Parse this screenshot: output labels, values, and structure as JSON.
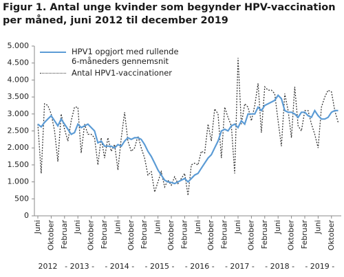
{
  "chart_data": {
    "type": "line",
    "title": "Figur 1. Antal unge kvinder som begynder HPV-vaccination per måned, juni 2012 til december 2019",
    "categories": [
      "Juni",
      null,
      null,
      null,
      "Oktober",
      null,
      null,
      null,
      "Februar",
      null,
      null,
      null,
      "Juni",
      null,
      null,
      null,
      "Oktober",
      null,
      null,
      null,
      "Februar",
      null,
      null,
      null,
      "Juni",
      null,
      null,
      null,
      "Oktober",
      null,
      null,
      null,
      "Februar",
      null,
      null,
      null,
      "Juni",
      null,
      null,
      null,
      "Oktober",
      null,
      null,
      null,
      "Februar",
      null,
      null,
      null,
      "Juni",
      null,
      null,
      null,
      "Oktober",
      null,
      null,
      null,
      "Februar",
      null,
      null,
      null,
      "Juni",
      null,
      null,
      null,
      "Oktober",
      null,
      null,
      null,
      "Februar",
      null,
      null,
      null,
      "Juni",
      null,
      null,
      null,
      "Oktober",
      null,
      null,
      null,
      "Februar",
      null,
      null,
      null,
      "Juni",
      null,
      null,
      null,
      "Oktober",
      null,
      null
    ],
    "year_labels": [
      "2012",
      "- 2013 -",
      "- 2014 -",
      "- 2015 -",
      "- 2016 -",
      "- 2017 -",
      "- 2018 -",
      "- 2019 -"
    ],
    "series": [
      {
        "name": "HPV1 opgjort med rullende 6-måneders gennemsnit",
        "color": "#5b9bd5",
        "style": "solid",
        "values": [
          2700,
          2620,
          2750,
          2850,
          2950,
          2800,
          2650,
          2850,
          2700,
          2550,
          2400,
          2450,
          2700,
          2600,
          2650,
          2700,
          2600,
          2500,
          2150,
          2200,
          2050,
          2050,
          2050,
          2000,
          2100,
          2050,
          2200,
          2300,
          2250,
          2300,
          2300,
          2250,
          2100,
          1900,
          1750,
          1550,
          1350,
          1200,
          1050,
          1000,
          980,
          950,
          1000,
          1050,
          1100,
          1000,
          1100,
          1200,
          1250,
          1400,
          1550,
          1700,
          1800,
          2000,
          2200,
          2500,
          2550,
          2500,
          2650,
          2700,
          2600,
          2800,
          2700,
          3000,
          3000,
          3000,
          3200,
          3100,
          3250,
          3300,
          3350,
          3400,
          3550,
          3450,
          3100,
          3050,
          3050,
          3000,
          2900,
          3050,
          3050,
          2950,
          2900,
          3100,
          2950,
          2850,
          2850,
          2900,
          3050,
          3100,
          3100
        ]
      },
      {
        "name": "Antal HPV1-vaccinationer",
        "color": "#333333",
        "style": "dotted",
        "values": [
          2700,
          1250,
          3300,
          3250,
          3000,
          2500,
          1600,
          3000,
          2550,
          2200,
          2800,
          3200,
          3200,
          1850,
          2700,
          2400,
          2400,
          2300,
          1500,
          2300,
          1700,
          2300,
          1900,
          2100,
          1350,
          2300,
          3050,
          2200,
          1900,
          2000,
          2350,
          2000,
          1700,
          1200,
          1300,
          700,
          1000,
          1300,
          850,
          1050,
          900,
          1150,
          950,
          1100,
          1250,
          600,
          1500,
          1550,
          1500,
          1900,
          1850,
          2700,
          2200,
          3150,
          3000,
          1700,
          3200,
          2900,
          2650,
          1250,
          4650,
          2700,
          3300,
          3200,
          2800,
          3250,
          3900,
          2450,
          3800,
          3700,
          3700,
          3600,
          2800,
          2050,
          3600,
          3100,
          2300,
          3800,
          2650,
          2500,
          3100,
          3100,
          2700,
          2400,
          2000,
          3200,
          3500,
          3700,
          3650,
          3100,
          2750
        ]
      }
    ],
    "ylim": [
      0,
      5000
    ],
    "yticks": [
      0,
      500,
      {
        "value": 1000,
        "label": "1.000"
      },
      {
        "value": 1500,
        "label": "1.500"
      },
      {
        "value": 2000,
        "label": "2.000"
      },
      {
        "value": 2500,
        "label": "2.500"
      },
      {
        "value": 3000,
        "label": "3.000"
      },
      {
        "value": 3500,
        "label": "3.500"
      },
      {
        "value": 4000,
        "label": "4.000"
      },
      {
        "value": 4500,
        "label": "4.500"
      },
      {
        "value": 5000,
        "label": "5.000"
      }
    ],
    "grid": false,
    "legend": "top-left"
  }
}
